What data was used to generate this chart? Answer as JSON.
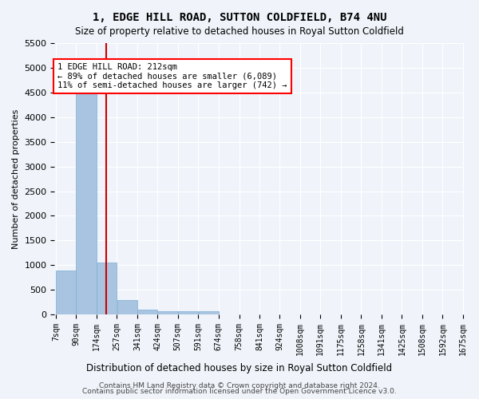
{
  "title": "1, EDGE HILL ROAD, SUTTON COLDFIELD, B74 4NU",
  "subtitle": "Size of property relative to detached houses in Royal Sutton Coldfield",
  "xlabel": "Distribution of detached houses by size in Royal Sutton Coldfield",
  "ylabel": "Number of detached properties",
  "footer_line1": "Contains HM Land Registry data © Crown copyright and database right 2024.",
  "footer_line2": "Contains public sector information licensed under the Open Government Licence v3.0.",
  "annotation_line1": "1 EDGE HILL ROAD: 212sqm",
  "annotation_line2": "← 89% of detached houses are smaller (6,089)",
  "annotation_line3": "11% of semi-detached houses are larger (742) →",
  "property_size": 212,
  "bar_color": "#a8c4e0",
  "bar_edge_color": "#7aaed4",
  "vline_color": "#cc0000",
  "background_color": "#f0f4fa",
  "grid_color": "#ffffff",
  "bins": [
    7,
    90,
    174,
    257,
    341,
    424,
    507,
    591,
    674,
    758,
    841,
    924,
    1008,
    1091,
    1175,
    1258,
    1341,
    1425,
    1508,
    1592,
    1675
  ],
  "bin_labels": [
    "7sqm",
    "90sqm",
    "174sqm",
    "257sqm",
    "341sqm",
    "424sqm",
    "507sqm",
    "591sqm",
    "674sqm",
    "758sqm",
    "841sqm",
    "924sqm",
    "1008sqm",
    "1091sqm",
    "1175sqm",
    "1258sqm",
    "1341sqm",
    "1425sqm",
    "1508sqm",
    "1592sqm",
    "1675sqm"
  ],
  "bar_heights": [
    890,
    4550,
    1060,
    290,
    95,
    70,
    65,
    65,
    0,
    0,
    0,
    0,
    0,
    0,
    0,
    0,
    0,
    0,
    0,
    0
  ],
  "ylim": [
    0,
    5500
  ],
  "yticks": [
    0,
    500,
    1000,
    1500,
    2000,
    2500,
    3000,
    3500,
    4000,
    4500,
    5000,
    5500
  ]
}
